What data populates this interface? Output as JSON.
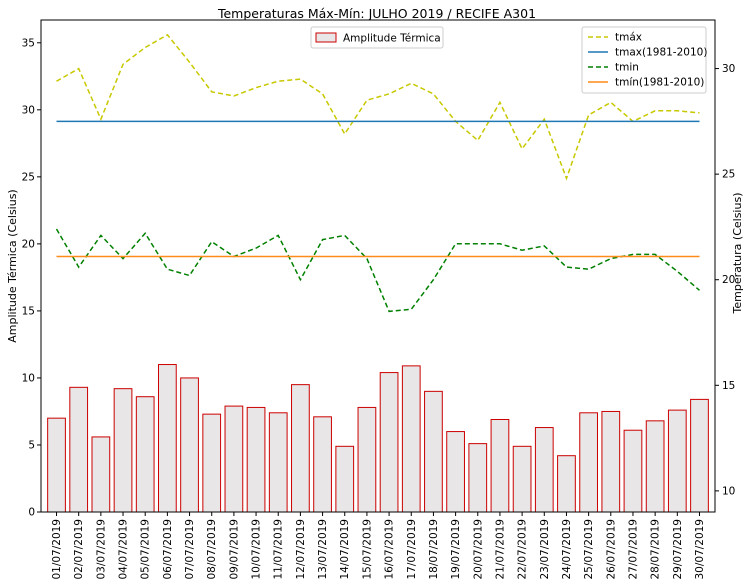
{
  "chart_data": {
    "type": "bar+line",
    "title": "Temperaturas Máx-Mín: JULHO 2019 / RECIFE A301",
    "ylabel_left": "Amplitude Térmica (Celsius)",
    "ylabel_right": "Temperatura (Celsius)",
    "ylim_left": [
      0,
      36.7
    ],
    "ylim_right": [
      9.0,
      32.3
    ],
    "yticks_left": [
      0,
      5,
      10,
      15,
      20,
      25,
      30,
      35
    ],
    "yticks_right": [
      10,
      15,
      20,
      25,
      30
    ],
    "categories": [
      "01/07/2019",
      "02/07/2019",
      "03/07/2019",
      "04/07/2019",
      "05/07/2019",
      "06/07/2019",
      "07/07/2019",
      "08/07/2019",
      "09/07/2019",
      "10/07/2019",
      "11/07/2019",
      "12/07/2019",
      "13/07/2019",
      "14/07/2019",
      "15/07/2019",
      "16/07/2019",
      "17/07/2019",
      "18/07/2019",
      "19/07/2019",
      "20/07/2019",
      "21/07/2019",
      "22/07/2019",
      "23/07/2019",
      "24/07/2019",
      "25/07/2019",
      "26/07/2019",
      "27/07/2019",
      "28/07/2019",
      "29/07/2019",
      "30/07/2019"
    ],
    "bars": {
      "name": "Amplitude Térmica",
      "axis": "left",
      "fill": "#e8e6e6",
      "edge": "#cc0000",
      "values": [
        7.0,
        9.3,
        5.6,
        9.2,
        8.6,
        11.0,
        10.0,
        7.3,
        7.9,
        7.8,
        7.4,
        9.5,
        7.1,
        4.9,
        7.8,
        10.4,
        10.9,
        9.0,
        6.0,
        5.1,
        6.9,
        4.9,
        6.3,
        4.2,
        7.4,
        7.5,
        6.1,
        6.8,
        7.6,
        8.4
      ]
    },
    "series": [
      {
        "name": "tmáx",
        "axis": "right",
        "color": "#c8c800",
        "dash": true,
        "values": [
          29.4,
          30.0,
          27.6,
          30.2,
          31.0,
          31.6,
          30.3,
          28.9,
          28.7,
          29.1,
          29.4,
          29.5,
          28.8,
          26.9,
          28.5,
          28.8,
          29.3,
          28.8,
          27.5,
          26.6,
          28.4,
          26.2,
          27.6,
          24.8,
          27.8,
          28.4,
          27.5,
          28.0,
          28.0,
          27.9
        ]
      },
      {
        "name": "tmax(1981-2010)",
        "axis": "right",
        "color": "#1f77b4",
        "dash": false,
        "values": [
          27.5,
          27.5,
          27.5,
          27.5,
          27.5,
          27.5,
          27.5,
          27.5,
          27.5,
          27.5,
          27.5,
          27.5,
          27.5,
          27.5,
          27.5,
          27.5,
          27.5,
          27.5,
          27.5,
          27.5,
          27.5,
          27.5,
          27.5,
          27.5,
          27.5,
          27.5,
          27.5,
          27.5,
          27.5,
          27.5
        ]
      },
      {
        "name": "tmin",
        "axis": "right",
        "color": "#008000",
        "dash": true,
        "values": [
          22.4,
          20.6,
          22.1,
          21.0,
          22.2,
          20.5,
          20.2,
          21.8,
          21.1,
          21.5,
          22.1,
          20.0,
          21.9,
          22.1,
          21.0,
          18.5,
          18.6,
          20.0,
          21.7,
          21.7,
          21.7,
          21.4,
          21.6,
          20.6,
          20.5,
          21.0,
          21.2,
          21.2,
          20.4,
          19.5
        ]
      },
      {
        "name": "tmín(1981-2010)",
        "axis": "right",
        "color": "#ff8c1a",
        "dash": false,
        "values": [
          21.1,
          21.1,
          21.1,
          21.1,
          21.1,
          21.1,
          21.1,
          21.1,
          21.1,
          21.1,
          21.1,
          21.1,
          21.1,
          21.1,
          21.1,
          21.1,
          21.1,
          21.1,
          21.1,
          21.1,
          21.1,
          21.1,
          21.1,
          21.1,
          21.1,
          21.1,
          21.1,
          21.1,
          21.1,
          21.1
        ]
      }
    ],
    "legend_left_position": "upper-center",
    "legend_right_position": "upper-right",
    "grid": false
  }
}
